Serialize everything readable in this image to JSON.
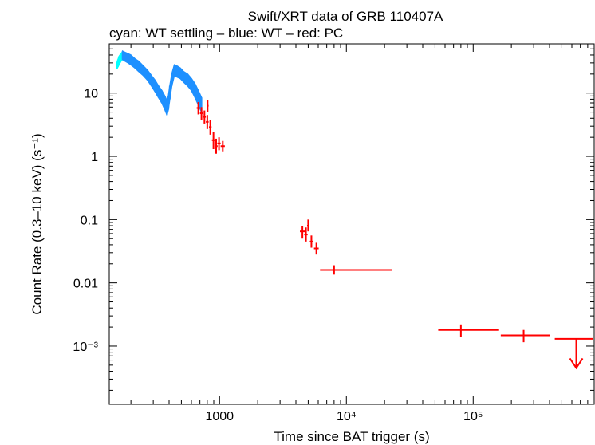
{
  "chart_data": {
    "type": "scatter",
    "title": "Swift/XRT data of GRB 110407A",
    "subtitle": "cyan: WT settling – blue: WT – red: PC",
    "xlabel": "Time since BAT trigger (s)",
    "ylabel": "Count Rate (0.3–10 keV) (s⁻¹)",
    "xscale": "log",
    "yscale": "log",
    "xlim": [
      135,
      900000
    ],
    "ylim": [
      0.00012,
      60
    ],
    "x_ticks": [
      {
        "value": 1000,
        "label": "1000"
      },
      {
        "value": 10000,
        "label": "10⁴"
      },
      {
        "value": 100000,
        "label": "10⁵"
      }
    ],
    "y_ticks": [
      {
        "value": 10,
        "label": "10"
      },
      {
        "value": 1,
        "label": "1"
      },
      {
        "value": 0.1,
        "label": "0.1"
      },
      {
        "value": 0.01,
        "label": "0.01"
      },
      {
        "value": 0.001,
        "label": "10⁻³"
      }
    ],
    "series": [
      {
        "name": "WT settling",
        "color": "#00ffff",
        "kind": "band",
        "points": [
          {
            "x": 155,
            "lo": 24,
            "hi": 30
          },
          {
            "x": 158,
            "lo": 26,
            "hi": 34
          },
          {
            "x": 161,
            "lo": 28,
            "hi": 38
          },
          {
            "x": 164,
            "lo": 30,
            "hi": 40
          },
          {
            "x": 167,
            "lo": 32,
            "hi": 42
          },
          {
            "x": 170,
            "lo": 33,
            "hi": 44
          }
        ]
      },
      {
        "name": "WT",
        "color": "#1e90ff",
        "kind": "band",
        "points": [
          {
            "x": 172,
            "lo": 34,
            "hi": 46
          },
          {
            "x": 180,
            "lo": 32,
            "hi": 44
          },
          {
            "x": 190,
            "lo": 30,
            "hi": 42
          },
          {
            "x": 200,
            "lo": 28,
            "hi": 40
          },
          {
            "x": 215,
            "lo": 25,
            "hi": 35
          },
          {
            "x": 230,
            "lo": 22,
            "hi": 32
          },
          {
            "x": 250,
            "lo": 19,
            "hi": 27
          },
          {
            "x": 270,
            "lo": 16,
            "hi": 23
          },
          {
            "x": 290,
            "lo": 13,
            "hi": 19
          },
          {
            "x": 310,
            "lo": 10.5,
            "hi": 16
          },
          {
            "x": 330,
            "lo": 8.5,
            "hi": 13
          },
          {
            "x": 350,
            "lo": 7,
            "hi": 11
          },
          {
            "x": 370,
            "lo": 5.5,
            "hi": 9
          },
          {
            "x": 385,
            "lo": 4.5,
            "hi": 7.5
          },
          {
            "x": 395,
            "lo": 5.5,
            "hi": 9
          },
          {
            "x": 405,
            "lo": 8,
            "hi": 13
          },
          {
            "x": 420,
            "lo": 13,
            "hi": 20
          },
          {
            "x": 440,
            "lo": 19,
            "hi": 28
          },
          {
            "x": 460,
            "lo": 18,
            "hi": 27
          },
          {
            "x": 490,
            "lo": 17,
            "hi": 25
          },
          {
            "x": 520,
            "lo": 15,
            "hi": 22
          },
          {
            "x": 560,
            "lo": 13,
            "hi": 20
          },
          {
            "x": 600,
            "lo": 11,
            "hi": 17
          },
          {
            "x": 640,
            "lo": 8.5,
            "hi": 14
          },
          {
            "x": 680,
            "lo": 6.5,
            "hi": 11
          },
          {
            "x": 720,
            "lo": 5,
            "hi": 8.5
          }
        ]
      },
      {
        "name": "PC",
        "color": "#ff0000",
        "kind": "errorbar",
        "points": [
          {
            "x": 680,
            "xlo": 660,
            "xhi": 700,
            "y": 5.8,
            "ylo": 4.6,
            "yhi": 7.2
          },
          {
            "x": 720,
            "xlo": 700,
            "xhi": 740,
            "y": 4.8,
            "ylo": 3.8,
            "yhi": 6.0
          },
          {
            "x": 760,
            "xlo": 740,
            "xhi": 780,
            "y": 4.2,
            "ylo": 3.3,
            "yhi": 5.3
          },
          {
            "x": 800,
            "xlo": 780,
            "xhi": 820,
            "y": 3.5,
            "ylo": 2.7,
            "yhi": 4.5
          },
          {
            "x": 805,
            "xlo": 790,
            "xhi": 820,
            "y": 6.3,
            "ylo": 5.0,
            "yhi": 7.8
          },
          {
            "x": 845,
            "xlo": 825,
            "xhi": 865,
            "y": 2.9,
            "ylo": 2.2,
            "yhi": 3.8
          },
          {
            "x": 895,
            "xlo": 870,
            "xhi": 920,
            "y": 1.8,
            "ylo": 1.3,
            "yhi": 2.4
          },
          {
            "x": 940,
            "xlo": 915,
            "xhi": 965,
            "y": 1.45,
            "ylo": 1.1,
            "yhi": 1.9
          },
          {
            "x": 990,
            "xlo": 960,
            "xhi": 1020,
            "y": 1.6,
            "ylo": 1.25,
            "yhi": 2.0
          },
          {
            "x": 1060,
            "xlo": 1020,
            "xhi": 1100,
            "y": 1.45,
            "ylo": 1.2,
            "yhi": 1.75
          },
          {
            "x": 4500,
            "xlo": 4300,
            "xhi": 4700,
            "y": 0.065,
            "ylo": 0.05,
            "yhi": 0.08
          },
          {
            "x": 4800,
            "xlo": 4650,
            "xhi": 4950,
            "y": 0.058,
            "ylo": 0.045,
            "yhi": 0.075
          },
          {
            "x": 5000,
            "xlo": 4900,
            "xhi": 5100,
            "y": 0.08,
            "ylo": 0.065,
            "yhi": 0.1
          },
          {
            "x": 5300,
            "xlo": 5150,
            "xhi": 5450,
            "y": 0.045,
            "ylo": 0.036,
            "yhi": 0.056
          },
          {
            "x": 5800,
            "xlo": 5550,
            "xhi": 6050,
            "y": 0.035,
            "ylo": 0.028,
            "yhi": 0.043
          },
          {
            "x": 8000,
            "xlo": 6200,
            "xhi": 23000,
            "y": 0.016,
            "ylo": 0.0135,
            "yhi": 0.019
          },
          {
            "x": 80000,
            "xlo": 53000,
            "xhi": 160000,
            "y": 0.0018,
            "ylo": 0.0014,
            "yhi": 0.0022
          },
          {
            "x": 250000,
            "xlo": 165000,
            "xhi": 400000,
            "y": 0.00148,
            "ylo": 0.00115,
            "yhi": 0.0018
          }
        ]
      },
      {
        "name": "PC upper limit",
        "color": "#ff0000",
        "kind": "upperlimit",
        "points": [
          {
            "x": 650000,
            "xlo": 440000,
            "xhi": 880000,
            "y": 0.0013,
            "arrow_to": 0.00045
          }
        ]
      }
    ]
  }
}
